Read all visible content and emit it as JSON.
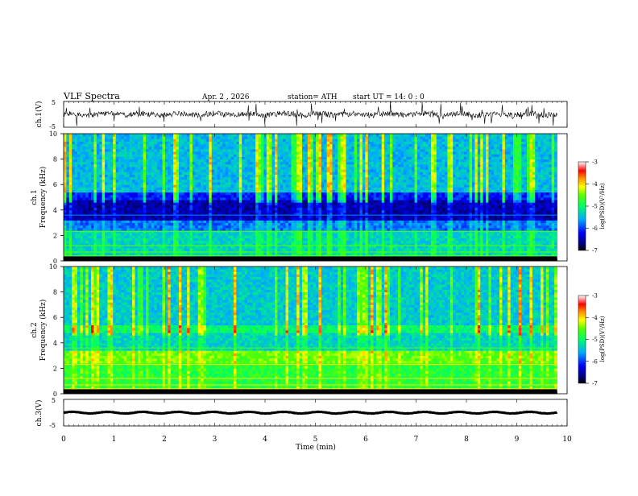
{
  "header": {
    "title": "VLF  Spectra",
    "date": "Apr. 2  , 2026",
    "station": "station= ATH",
    "start": "start  UT  =   14: 0   : 0"
  },
  "chart_data": [
    {
      "id": "ch1-waveform",
      "type": "line",
      "ylabel": "ch.1(V)",
      "yticks": [
        "5",
        "-5"
      ],
      "ylim": [
        -5,
        5
      ],
      "xlim": [
        0,
        10
      ],
      "data_end_min": 9.8
    },
    {
      "id": "ch1-spectrogram",
      "type": "heatmap",
      "ylabel": "ch.1\nFrequency (kHz)",
      "ylabel_line1": "ch.1",
      "ylabel_line2": "Frequency (kHz)",
      "yticks": [
        "10",
        "8",
        "6",
        "4",
        "2",
        "0"
      ],
      "ylim": [
        0,
        10
      ],
      "xlim": [
        0,
        10
      ],
      "data_end_min": 9.8,
      "colorbar": {
        "label": "log(PSD)(V²/Hz)",
        "ticks": [
          "-3",
          "-4",
          "-5",
          "-6",
          "-7"
        ],
        "range": [
          -7,
          -3
        ]
      }
    },
    {
      "id": "ch2-spectrogram",
      "type": "heatmap",
      "ylabel": "ch.2\nFrequency (kHz)",
      "ylabel_line1": "ch.2",
      "ylabel_line2": "Frequency (kHz)",
      "yticks": [
        "10",
        "8",
        "6",
        "4",
        "2",
        "0"
      ],
      "ylim": [
        0,
        10
      ],
      "xlim": [
        0,
        10
      ],
      "data_end_min": 9.8,
      "colorbar": {
        "label": "log(PSD)(V²/Hz)",
        "ticks": [
          "-3",
          "-4",
          "-5",
          "-6",
          "-7"
        ],
        "range": [
          -7,
          -3
        ]
      }
    },
    {
      "id": "ch3-waveform",
      "type": "line",
      "ylabel": "ch.3(V)",
      "yticks": [
        "5",
        "-5"
      ],
      "ylim": [
        -5,
        5
      ],
      "xlim": [
        0,
        10
      ],
      "data_end_min": 9.8
    }
  ],
  "xaxis": {
    "label": "Time  (min)",
    "ticks": [
      "0",
      "1",
      "2",
      "3",
      "4",
      "5",
      "6",
      "7",
      "8",
      "9",
      "10"
    ]
  },
  "colors": {
    "waveform": "#000000",
    "axis": "#000000",
    "background": "#ffffff"
  }
}
